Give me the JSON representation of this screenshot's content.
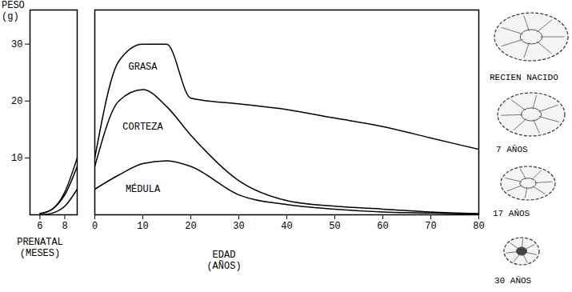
{
  "chart_data": [
    {
      "type": "line",
      "stacked": true,
      "x": [
        6,
        7,
        8,
        9
      ],
      "xlim": [
        5.2,
        9
      ],
      "xticks": [
        6,
        8
      ],
      "ylim": [
        0,
        36
      ],
      "yticks": [
        10,
        20,
        30
      ],
      "ylabel": "PESO (g)",
      "xlabel": "PRENATAL (MESES)",
      "series": [
        {
          "color": "#000000",
          "values": [
            0,
            0.3,
            1.5,
            4.5
          ]
        },
        {
          "color": "#000000",
          "values": [
            0.2,
            0.7,
            2,
            4
          ]
        },
        {
          "color": "#000000",
          "values": [
            0,
            0,
            0.5,
            1.5
          ]
        }
      ]
    },
    {
      "type": "line",
      "stacked": true,
      "tick_labels": "x",
      "x": [
        0,
        5,
        10,
        15,
        20,
        30,
        40,
        50,
        60,
        70,
        80
      ],
      "xlim": [
        0,
        80
      ],
      "xticks": [
        0,
        10,
        20,
        30,
        40,
        50,
        60,
        70,
        80
      ],
      "ylim": [
        0,
        36
      ],
      "xlabel": "EDAD (AÑOS)",
      "series": [
        {
          "name": "MÉDULA",
          "color": "#000000",
          "values": [
            4.5,
            7,
            9,
            9.5,
            8.5,
            3.5,
            1.8,
            1,
            0.5,
            0.3,
            0.1
          ]
        },
        {
          "name": "CORTEZA",
          "color": "#000000",
          "values": [
            4,
            13,
            13,
            9.5,
            5.5,
            2.5,
            0.7,
            0.5,
            0.5,
            0.2,
            0.1
          ]
        },
        {
          "name": "GRASA",
          "color": "#000000",
          "values": [
            1.5,
            7,
            8,
            11,
            6.5,
            13.5,
            16,
            15.5,
            14.5,
            13,
            11.3
          ]
        }
      ]
    }
  ],
  "sections": {
    "labels": [
      "RECIEN NACIDO",
      "7 AÑOS",
      "17 AÑOS",
      "30 AÑOS"
    ]
  }
}
